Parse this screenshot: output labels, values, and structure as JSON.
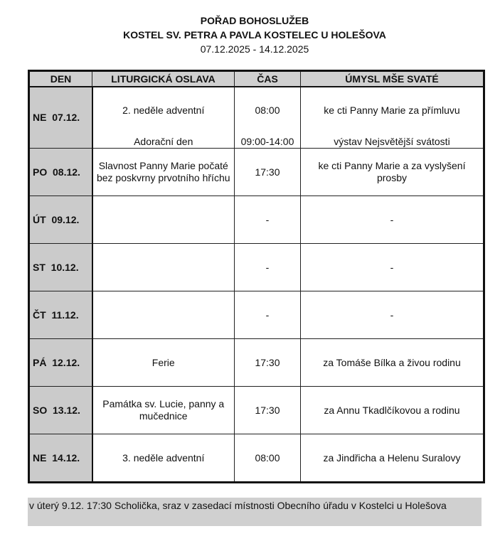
{
  "header": {
    "title": "POŘAD BOHOSLUŽEB",
    "subtitle": "KOSTEL SV. PETRA A PAVLA KOSTELEC U HOLEŠOVA",
    "date_range": "07.12.2025 - 14.12.2025"
  },
  "table": {
    "columns": [
      "DEN",
      "LITURGICKÁ OSLAVA",
      "ČAS",
      "ÚMYSL MŠE SVATÉ"
    ],
    "first_row": {
      "day": "NE  07.12.",
      "celebration": "2. neděle adventní",
      "time": "08:00",
      "intention": "ke cti Panny Marie za přímluvu",
      "celebration2": "Adorační den",
      "time2": "09:00-14:00",
      "intention2": "výstav Nejsvětější svátosti"
    },
    "rows": [
      {
        "day": "PO  08.12.",
        "celebration": "Slavnost Panny Marie počaté bez poskvrny prvotního hříchu",
        "time": "17:30",
        "intention": "ke cti Panny Marie a za vyslyšení prosby"
      },
      {
        "day": "ÚT  09.12.",
        "celebration": "",
        "time": "-",
        "intention": "-"
      },
      {
        "day": "ST  10.12.",
        "celebration": "",
        "time": "-",
        "intention": "-"
      },
      {
        "day": "ČT  11.12.",
        "celebration": "",
        "time": "-",
        "intention": "-"
      },
      {
        "day": "PÁ  12.12.",
        "celebration": "Ferie",
        "time": "17:30",
        "intention": "za Tomáše Bílka a živou rodinu"
      },
      {
        "day": "SO  13.12.",
        "celebration": "Památka sv. Lucie, panny a mučednice",
        "time": "17:30",
        "intention": "za Annu Tkadlčíkovou a rodinu"
      },
      {
        "day": "NE  14.12.",
        "celebration": "3. neděle adventní",
        "time": "08:00",
        "intention": "za Jindřicha a Helenu Suralovy"
      }
    ]
  },
  "note": "v úterý 9.12. 17:30 Scholička, sraz v zasedací místnosti Obecního úřadu v Kostelci u Holešova"
}
